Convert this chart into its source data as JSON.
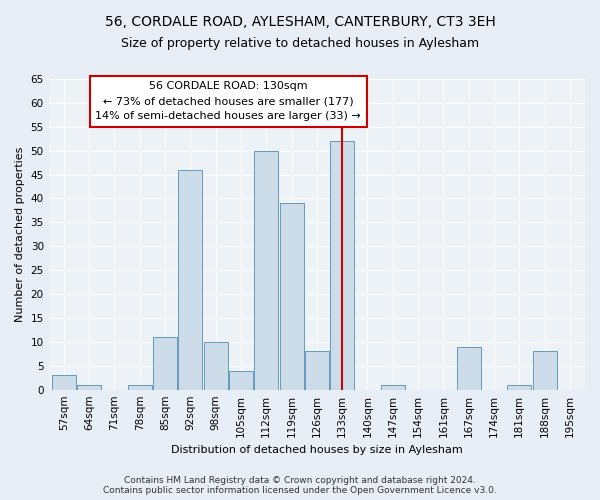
{
  "title": "56, CORDALE ROAD, AYLESHAM, CANTERBURY, CT3 3EH",
  "subtitle": "Size of property relative to detached houses in Aylesham",
  "xlabel": "Distribution of detached houses by size in Aylesham",
  "ylabel": "Number of detached properties",
  "bins": [
    "57sqm",
    "64sqm",
    "71sqm",
    "78sqm",
    "85sqm",
    "92sqm",
    "98sqm",
    "105sqm",
    "112sqm",
    "119sqm",
    "126sqm",
    "133sqm",
    "140sqm",
    "147sqm",
    "154sqm",
    "161sqm",
    "167sqm",
    "174sqm",
    "181sqm",
    "188sqm",
    "195sqm"
  ],
  "values": [
    3,
    1,
    0,
    1,
    11,
    46,
    10,
    4,
    50,
    39,
    8,
    52,
    0,
    1,
    0,
    0,
    9,
    0,
    1,
    8,
    0
  ],
  "bar_color": "#ccdce8",
  "bar_edge_color": "#6699bb",
  "vline_x_index": 11,
  "vline_color": "#cc0000",
  "annotation_text": "56 CORDALE ROAD: 130sqm\n← 73% of detached houses are smaller (177)\n14% of semi-detached houses are larger (33) →",
  "annotation_box_color": "#ffffff",
  "annotation_box_edge": "#cc0000",
  "ylim": [
    0,
    65
  ],
  "yticks": [
    0,
    5,
    10,
    15,
    20,
    25,
    30,
    35,
    40,
    45,
    50,
    55,
    60,
    65
  ],
  "footer": "Contains HM Land Registry data © Crown copyright and database right 2024.\nContains public sector information licensed under the Open Government Licence v3.0.",
  "bg_color": "#e8eef5",
  "plot_bg_color": "#edf2f7",
  "title_fontsize": 10,
  "subtitle_fontsize": 9,
  "axis_label_fontsize": 8,
  "tick_fontsize": 7.5,
  "annotation_fontsize": 8,
  "footer_fontsize": 6.5
}
